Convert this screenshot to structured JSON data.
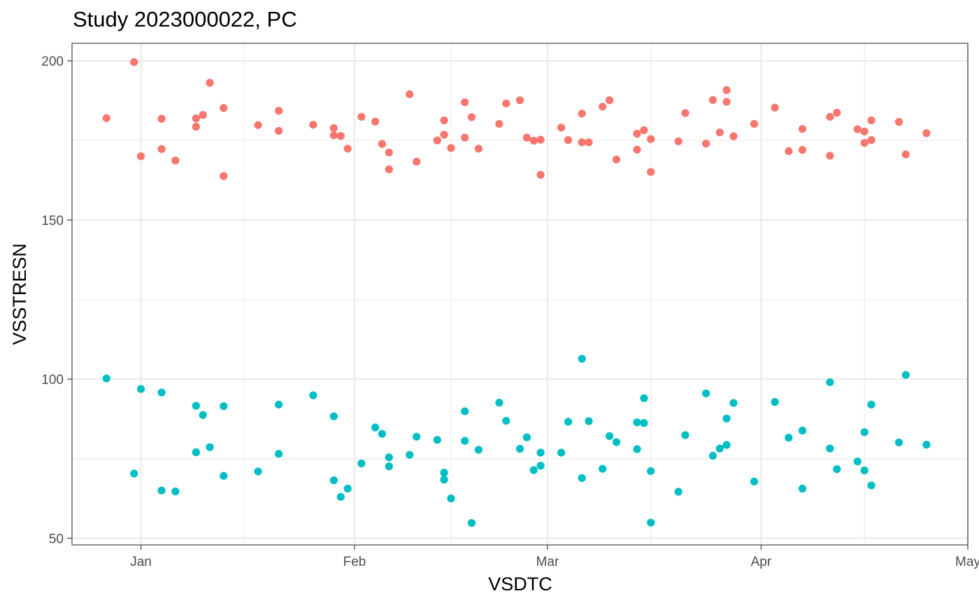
{
  "chart_data": {
    "type": "scatter",
    "title": "Study 2023000022, PC",
    "xlabel": "VSDTC",
    "ylabel": "VSSTRESN",
    "x_type": "date",
    "xlim": [
      "2022-12-22",
      "2023-05-01"
    ],
    "ylim": [
      47.9,
      205.5
    ],
    "x_ticks": [
      {
        "date": "2023-01-01",
        "label": "Jan"
      },
      {
        "date": "2023-02-01",
        "label": "Feb"
      },
      {
        "date": "2023-03-01",
        "label": "Mar"
      },
      {
        "date": "2023-04-01",
        "label": "Apr"
      },
      {
        "date": "2023-05-01",
        "label": "May"
      }
    ],
    "x_minor_ticks": [
      "2023-01-16",
      "2023-02-15",
      "2023-03-16",
      "2023-04-16"
    ],
    "y_ticks": [
      50,
      100,
      150,
      200
    ],
    "y_minor_ticks": [
      75,
      125,
      175
    ],
    "grid": true,
    "legend": "none",
    "series": [
      {
        "color": "#F8766D",
        "points": [
          [
            "2022-12-27",
            182.0
          ],
          [
            "2022-12-31",
            199.6
          ],
          [
            "2023-01-01",
            170.0
          ],
          [
            "2023-01-04",
            181.8
          ],
          [
            "2023-01-04",
            172.3
          ],
          [
            "2023-01-06",
            168.7
          ],
          [
            "2023-01-09",
            181.9
          ],
          [
            "2023-01-09",
            179.3
          ],
          [
            "2023-01-10",
            183.0
          ],
          [
            "2023-01-11",
            193.1
          ],
          [
            "2023-01-13",
            185.2
          ],
          [
            "2023-01-13",
            163.8
          ],
          [
            "2023-01-18",
            179.8
          ],
          [
            "2023-01-21",
            184.3
          ],
          [
            "2023-01-21",
            178.0
          ],
          [
            "2023-01-26",
            179.9
          ],
          [
            "2023-01-29",
            178.9
          ],
          [
            "2023-01-29",
            176.6
          ],
          [
            "2023-01-30",
            176.4
          ],
          [
            "2023-01-31",
            172.4
          ],
          [
            "2023-02-02",
            182.4
          ],
          [
            "2023-02-04",
            180.9
          ],
          [
            "2023-02-05",
            173.9
          ],
          [
            "2023-02-06",
            171.2
          ],
          [
            "2023-02-06",
            165.9
          ],
          [
            "2023-02-09",
            189.5
          ],
          [
            "2023-02-10",
            168.3
          ],
          [
            "2023-02-13",
            175.0
          ],
          [
            "2023-02-14",
            181.3
          ],
          [
            "2023-02-14",
            176.8
          ],
          [
            "2023-02-15",
            172.6
          ],
          [
            "2023-02-17",
            187.0
          ],
          [
            "2023-02-17",
            175.9
          ],
          [
            "2023-02-18",
            182.3
          ],
          [
            "2023-02-19",
            172.4
          ],
          [
            "2023-02-22",
            180.2
          ],
          [
            "2023-02-23",
            186.6
          ],
          [
            "2023-02-25",
            187.6
          ],
          [
            "2023-02-26",
            175.9
          ],
          [
            "2023-02-27",
            174.9
          ],
          [
            "2023-02-28",
            175.2
          ],
          [
            "2023-02-28",
            164.2
          ],
          [
            "2023-03-03",
            179.0
          ],
          [
            "2023-03-04",
            175.1
          ],
          [
            "2023-03-06",
            183.4
          ],
          [
            "2023-03-06",
            174.4
          ],
          [
            "2023-03-07",
            174.4
          ],
          [
            "2023-03-09",
            185.6
          ],
          [
            "2023-03-10",
            187.6
          ],
          [
            "2023-03-11",
            169.0
          ],
          [
            "2023-03-14",
            177.1
          ],
          [
            "2023-03-14",
            172.1
          ],
          [
            "2023-03-15",
            178.2
          ],
          [
            "2023-03-16",
            175.4
          ],
          [
            "2023-03-16",
            165.1
          ],
          [
            "2023-03-20",
            174.7
          ],
          [
            "2023-03-21",
            183.6
          ],
          [
            "2023-03-24",
            174.0
          ],
          [
            "2023-03-25",
            187.7
          ],
          [
            "2023-03-26",
            177.5
          ],
          [
            "2023-03-27",
            190.8
          ],
          [
            "2023-03-27",
            187.1
          ],
          [
            "2023-03-28",
            176.3
          ],
          [
            "2023-03-31",
            180.2
          ],
          [
            "2023-04-03",
            185.3
          ],
          [
            "2023-04-05",
            171.6
          ],
          [
            "2023-04-07",
            178.6
          ],
          [
            "2023-04-07",
            172.0
          ],
          [
            "2023-04-11",
            182.4
          ],
          [
            "2023-04-11",
            170.2
          ],
          [
            "2023-04-12",
            183.7
          ],
          [
            "2023-04-15",
            178.5
          ],
          [
            "2023-04-16",
            177.8
          ],
          [
            "2023-04-16",
            174.2
          ],
          [
            "2023-04-17",
            181.3
          ],
          [
            "2023-04-17",
            175.1
          ],
          [
            "2023-04-21",
            180.8
          ],
          [
            "2023-04-22",
            170.6
          ],
          [
            "2023-04-25",
            177.3
          ]
        ]
      },
      {
        "color": "#00BFC4",
        "points": [
          [
            "2022-12-27",
            100.2
          ],
          [
            "2022-12-31",
            70.3
          ],
          [
            "2023-01-01",
            96.9
          ],
          [
            "2023-01-04",
            95.8
          ],
          [
            "2023-01-04",
            65.0
          ],
          [
            "2023-01-06",
            64.7
          ],
          [
            "2023-01-09",
            91.6
          ],
          [
            "2023-01-09",
            77.0
          ],
          [
            "2023-01-10",
            88.7
          ],
          [
            "2023-01-11",
            78.6
          ],
          [
            "2023-01-13",
            91.5
          ],
          [
            "2023-01-13",
            69.6
          ],
          [
            "2023-01-18",
            71.0
          ],
          [
            "2023-01-21",
            92.0
          ],
          [
            "2023-01-21",
            76.5
          ],
          [
            "2023-01-26",
            94.9
          ],
          [
            "2023-01-29",
            88.3
          ],
          [
            "2023-01-29",
            68.2
          ],
          [
            "2023-01-30",
            63.0
          ],
          [
            "2023-01-31",
            65.6
          ],
          [
            "2023-02-02",
            73.5
          ],
          [
            "2023-02-04",
            84.8
          ],
          [
            "2023-02-05",
            82.8
          ],
          [
            "2023-02-06",
            75.4
          ],
          [
            "2023-02-06",
            72.6
          ],
          [
            "2023-02-09",
            76.2
          ],
          [
            "2023-02-10",
            81.9
          ],
          [
            "2023-02-13",
            80.9
          ],
          [
            "2023-02-14",
            70.6
          ],
          [
            "2023-02-14",
            68.4
          ],
          [
            "2023-02-15",
            62.5
          ],
          [
            "2023-02-17",
            89.9
          ],
          [
            "2023-02-17",
            80.6
          ],
          [
            "2023-02-18",
            54.8
          ],
          [
            "2023-02-19",
            77.8
          ],
          [
            "2023-02-22",
            92.6
          ],
          [
            "2023-02-23",
            86.9
          ],
          [
            "2023-02-25",
            78.1
          ],
          [
            "2023-02-26",
            81.7
          ],
          [
            "2023-02-27",
            71.4
          ],
          [
            "2023-02-28",
            76.9
          ],
          [
            "2023-02-28",
            72.8
          ],
          [
            "2023-03-03",
            76.9
          ],
          [
            "2023-03-04",
            86.6
          ],
          [
            "2023-03-06",
            106.4
          ],
          [
            "2023-03-06",
            68.9
          ],
          [
            "2023-03-07",
            86.8
          ],
          [
            "2023-03-09",
            71.8
          ],
          [
            "2023-03-10",
            82.1
          ],
          [
            "2023-03-11",
            80.2
          ],
          [
            "2023-03-14",
            86.4
          ],
          [
            "2023-03-14",
            78.0
          ],
          [
            "2023-03-15",
            94.0
          ],
          [
            "2023-03-15",
            86.2
          ],
          [
            "2023-03-16",
            71.1
          ],
          [
            "2023-03-16",
            54.9
          ],
          [
            "2023-03-20",
            64.6
          ],
          [
            "2023-03-21",
            82.4
          ],
          [
            "2023-03-24",
            95.5
          ],
          [
            "2023-03-25",
            75.9
          ],
          [
            "2023-03-26",
            78.2
          ],
          [
            "2023-03-27",
            87.6
          ],
          [
            "2023-03-27",
            79.3
          ],
          [
            "2023-03-28",
            92.5
          ],
          [
            "2023-03-31",
            67.8
          ],
          [
            "2023-04-03",
            92.8
          ],
          [
            "2023-04-05",
            81.6
          ],
          [
            "2023-04-07",
            83.8
          ],
          [
            "2023-04-07",
            65.6
          ],
          [
            "2023-04-11",
            99.0
          ],
          [
            "2023-04-11",
            78.2
          ],
          [
            "2023-04-12",
            71.7
          ],
          [
            "2023-04-15",
            74.1
          ],
          [
            "2023-04-16",
            83.3
          ],
          [
            "2023-04-16",
            71.3
          ],
          [
            "2023-04-17",
            92.0
          ],
          [
            "2023-04-17",
            66.6
          ],
          [
            "2023-04-21",
            80.1
          ],
          [
            "2023-04-22",
            101.3
          ],
          [
            "2023-04-25",
            79.4
          ]
        ]
      }
    ]
  }
}
